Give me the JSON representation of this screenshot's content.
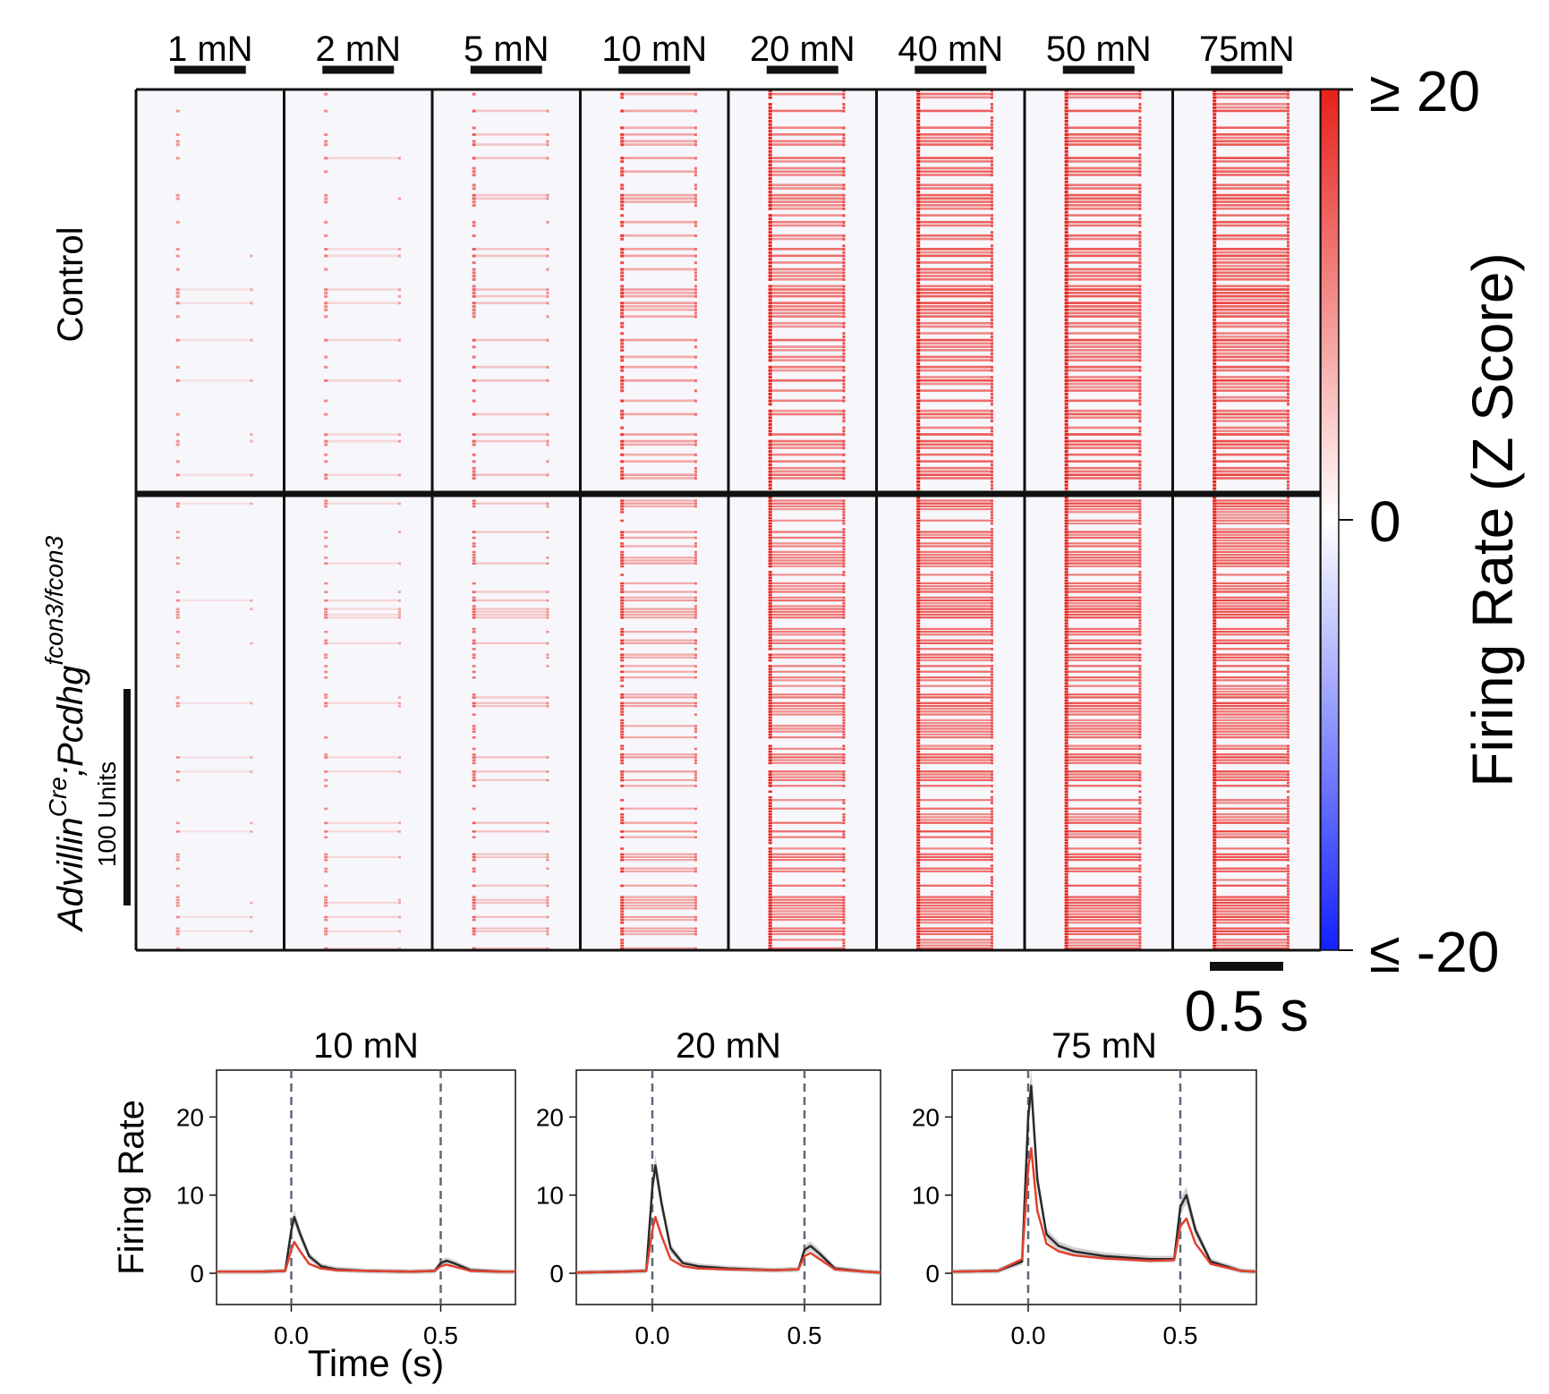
{
  "heatmap": {
    "forces": [
      "1 mN",
      "2 mN",
      "5 mN",
      "10 mN",
      "20 mN",
      "40 mN",
      "50 mN",
      "75mN"
    ],
    "response_strength": [
      0.12,
      0.18,
      0.3,
      0.5,
      0.78,
      0.92,
      0.95,
      1.0
    ],
    "rows": [
      {
        "label": "Control"
      },
      {
        "label_main": "Advillin",
        "label_sup1": "Cre",
        "label_mid": ";Pcdhg",
        "label_sup2": "fcon3/fcon3",
        "label_sub": ""
      }
    ],
    "unit_scale_label": "100 Units",
    "time_scale_label": "0.5 s",
    "colorbar": {
      "title": "Firing Rate (Z Score)",
      "max_label": "≥ 20",
      "mid_label": "0",
      "min_label": "≤ -20",
      "range": [
        -20,
        20
      ],
      "colors": {
        "high": "#e8211b",
        "mid": "#ffffff",
        "low": "#1320ff"
      }
    }
  },
  "chart_data": [
    {
      "type": "line",
      "title": "10 mN",
      "xlabel": "Time (s)",
      "ylabel": "Firing Rate",
      "xlim": [
        -0.25,
        0.75
      ],
      "ylim": [
        -4,
        26
      ],
      "xticks": [
        "0.0",
        "0.5"
      ],
      "yticks": [
        "0",
        "10",
        "20"
      ],
      "stimulus_lines": [
        0.0,
        0.5
      ],
      "x": [
        -0.25,
        -0.1,
        -0.02,
        0.0,
        0.01,
        0.03,
        0.06,
        0.1,
        0.15,
        0.25,
        0.4,
        0.48,
        0.5,
        0.52,
        0.55,
        0.6,
        0.7,
        0.75
      ],
      "series": [
        {
          "name": "Control",
          "color": "#2a2a2a",
          "values": [
            0.2,
            0.2,
            0.3,
            5.5,
            7.2,
            5.0,
            2.2,
            0.9,
            0.5,
            0.3,
            0.2,
            0.3,
            1.3,
            1.6,
            1.2,
            0.4,
            0.2,
            0.2
          ]
        },
        {
          "name": "Advillin Cre;Pcdhg fcon3/fcon3",
          "color": "#e0412e",
          "values": [
            0.2,
            0.2,
            0.3,
            3.0,
            4.0,
            2.8,
            1.2,
            0.6,
            0.4,
            0.3,
            0.2,
            0.3,
            0.9,
            1.1,
            0.8,
            0.3,
            0.2,
            0.2
          ]
        }
      ]
    },
    {
      "type": "line",
      "title": "20 mN",
      "xlabel": "",
      "ylabel": "",
      "xlim": [
        -0.25,
        0.75
      ],
      "ylim": [
        -4,
        26
      ],
      "xticks": [
        "0.0",
        "0.5"
      ],
      "yticks": [
        "0",
        "10",
        "20"
      ],
      "stimulus_lines": [
        0.0,
        0.5
      ],
      "x": [
        -0.25,
        -0.1,
        -0.02,
        0.0,
        0.01,
        0.03,
        0.06,
        0.1,
        0.15,
        0.25,
        0.4,
        0.48,
        0.5,
        0.52,
        0.55,
        0.6,
        0.7,
        0.75
      ],
      "series": [
        {
          "name": "Control",
          "color": "#2a2a2a",
          "values": [
            0.1,
            0.2,
            0.3,
            11.0,
            13.8,
            9.0,
            3.2,
            1.3,
            0.9,
            0.6,
            0.4,
            0.5,
            3.0,
            3.5,
            2.5,
            0.6,
            0.2,
            0.1
          ]
        },
        {
          "name": "Advillin Cre;Pcdhg fcon3/fcon3",
          "color": "#e0412e",
          "values": [
            0.1,
            0.2,
            0.3,
            5.5,
            7.2,
            4.8,
            1.8,
            0.9,
            0.6,
            0.5,
            0.4,
            0.5,
            2.2,
            2.6,
            1.8,
            0.5,
            0.2,
            0.1
          ]
        }
      ]
    },
    {
      "type": "line",
      "title": "75 mN",
      "xlabel": "",
      "ylabel": "",
      "xlim": [
        -0.25,
        0.75
      ],
      "ylim": [
        -4,
        26
      ],
      "xticks": [
        "0.0",
        "0.5"
      ],
      "yticks": [
        "0",
        "10",
        "20"
      ],
      "stimulus_lines": [
        0.0,
        0.5
      ],
      "x": [
        -0.25,
        -0.1,
        -0.02,
        0.0,
        0.01,
        0.03,
        0.06,
        0.1,
        0.15,
        0.25,
        0.4,
        0.48,
        0.5,
        0.52,
        0.55,
        0.6,
        0.7,
        0.75
      ],
      "series": [
        {
          "name": "Control",
          "color": "#2a2a2a",
          "values": [
            0.2,
            0.3,
            1.5,
            20.0,
            24.0,
            12.0,
            5.0,
            3.5,
            2.8,
            2.2,
            1.8,
            1.8,
            8.5,
            10.0,
            5.5,
            1.5,
            0.3,
            0.2
          ]
        },
        {
          "name": "Advillin Cre;Pcdhg fcon3/fcon3",
          "color": "#e0412e",
          "values": [
            0.2,
            0.3,
            1.8,
            13.5,
            16.0,
            8.0,
            3.8,
            2.8,
            2.3,
            1.9,
            1.6,
            1.7,
            6.0,
            7.0,
            3.8,
            1.2,
            0.3,
            0.2
          ]
        }
      ]
    }
  ]
}
